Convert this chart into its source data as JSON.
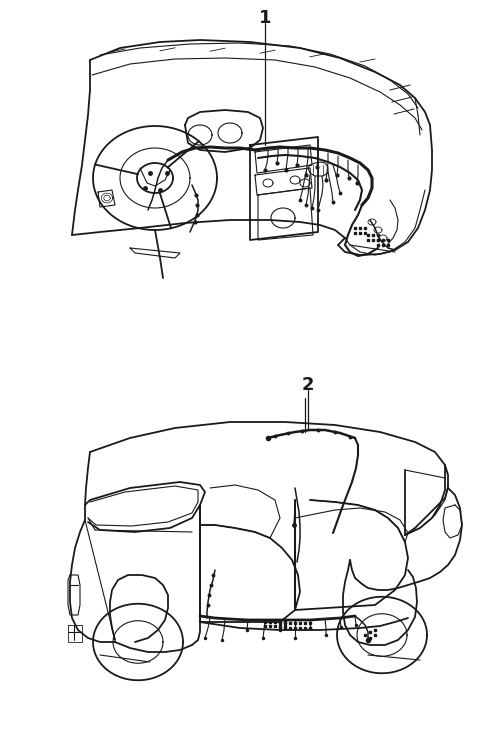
{
  "background_color": "#ffffff",
  "fig_width": 4.8,
  "fig_height": 7.29,
  "dpi": 100,
  "label1": "1",
  "label2": "2"
}
